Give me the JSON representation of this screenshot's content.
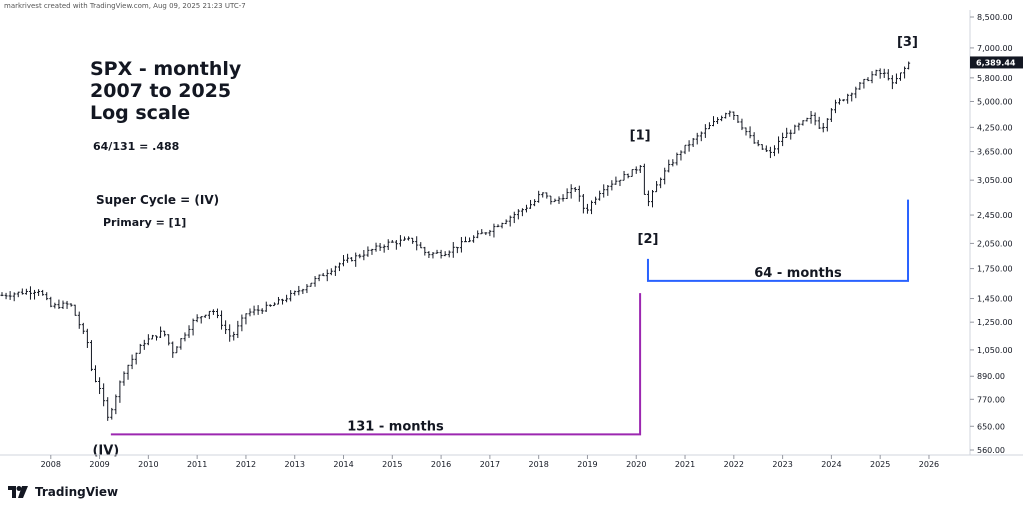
{
  "header": {
    "credit": "markrivest created with TradingView.com, Aug 09, 2025 21:23 UTC-7"
  },
  "brand": {
    "name": "TradingView"
  },
  "annotations": {
    "title_line1": "SPX - monthly",
    "title_line2": "2007 to 2025",
    "title_line3": "Log scale",
    "ratio": "64/131 = .488",
    "super_cycle": "Super Cycle = (IV)",
    "primary": "Primary = [1]",
    "label_iv": "(IV)",
    "label_1": "[1]",
    "label_2": "[2]",
    "label_3": "[3]",
    "span_131": "131 - months",
    "span_64": "64 - months"
  },
  "colors": {
    "purple": "#9c27b0",
    "blue": "#2962ff",
    "bars": "#131722",
    "price_tag": "#131722"
  },
  "chart_data": {
    "type": "ohlc",
    "title": "SPX - monthly",
    "scale": "log",
    "ylim": [
      560,
      8500
    ],
    "y_ticks": [
      8500,
      7000,
      5800,
      5000,
      4250,
      3650,
      3050,
      2450,
      2050,
      1750,
      1450,
      1250,
      1050,
      890,
      770,
      650,
      560
    ],
    "y_tick_labels": [
      "8,500.00",
      "7,000.00",
      "5,800.00",
      "5,000.00",
      "4,250.00",
      "3,650.00",
      "3,050.00",
      "2,450.00",
      "2,050.00",
      "1,750.00",
      "1,450.00",
      "1,250.00",
      "1,050.00",
      "890.00",
      "770.00",
      "650.00",
      "560.00"
    ],
    "x_ticks": [
      "2008",
      "2009",
      "2010",
      "2011",
      "2012",
      "2013",
      "2014",
      "2015",
      "2016",
      "2017",
      "2018",
      "2019",
      "2020",
      "2021",
      "2022",
      "2023",
      "2024",
      "2025",
      "2026"
    ],
    "last_price": "6,389.44",
    "anchors": [
      {
        "date": 2007.0,
        "close": 1480
      },
      {
        "date": 2007.75,
        "close": 1530
      },
      {
        "date": 2008.0,
        "close": 1380
      },
      {
        "date": 2008.4,
        "close": 1400
      },
      {
        "date": 2008.75,
        "close": 1100
      },
      {
        "date": 2008.85,
        "close": 900
      },
      {
        "date": 2009.0,
        "close": 830
      },
      {
        "date": 2009.17,
        "close": 680
      },
      {
        "date": 2009.5,
        "close": 920
      },
      {
        "date": 2009.9,
        "close": 1100
      },
      {
        "date": 2010.3,
        "close": 1180
      },
      {
        "date": 2010.5,
        "close": 1040
      },
      {
        "date": 2010.9,
        "close": 1250
      },
      {
        "date": 2011.3,
        "close": 1360
      },
      {
        "date": 2011.7,
        "close": 1130
      },
      {
        "date": 2012.0,
        "close": 1320
      },
      {
        "date": 2012.5,
        "close": 1380
      },
      {
        "date": 2013.0,
        "close": 1500
      },
      {
        "date": 2013.9,
        "close": 1800
      },
      {
        "date": 2014.9,
        "close": 2050
      },
      {
        "date": 2015.4,
        "close": 2100
      },
      {
        "date": 2015.7,
        "close": 1920
      },
      {
        "date": 2016.05,
        "close": 1930
      },
      {
        "date": 2016.9,
        "close": 2200
      },
      {
        "date": 2017.9,
        "close": 2650
      },
      {
        "date": 2018.05,
        "close": 2820
      },
      {
        "date": 2018.3,
        "close": 2650
      },
      {
        "date": 2018.75,
        "close": 2900
      },
      {
        "date": 2018.95,
        "close": 2500
      },
      {
        "date": 2019.3,
        "close": 2900
      },
      {
        "date": 2019.95,
        "close": 3230
      },
      {
        "date": 2020.1,
        "close": 3380
      },
      {
        "date": 2020.2,
        "close": 2580
      },
      {
        "date": 2020.5,
        "close": 3100
      },
      {
        "date": 2020.9,
        "close": 3650
      },
      {
        "date": 2021.9,
        "close": 4750
      },
      {
        "date": 2022.0,
        "close": 4600
      },
      {
        "date": 2022.45,
        "close": 3800
      },
      {
        "date": 2022.75,
        "close": 3600
      },
      {
        "date": 2023.0,
        "close": 4000
      },
      {
        "date": 2023.6,
        "close": 4550
      },
      {
        "date": 2023.8,
        "close": 4200
      },
      {
        "date": 2024.0,
        "close": 4800
      },
      {
        "date": 2024.9,
        "close": 6000
      },
      {
        "date": 2025.15,
        "close": 5900
      },
      {
        "date": 2025.25,
        "close": 5550
      },
      {
        "date": 2025.4,
        "close": 5900
      },
      {
        "date": 2025.6,
        "close": 6389
      }
    ],
    "markers": [
      {
        "label": "(IV)",
        "date": 2009.17,
        "value": 666
      },
      {
        "label": "[1]",
        "date": 2020.12,
        "value": 3390
      },
      {
        "label": "[2]",
        "date": 2020.22,
        "value": 2190
      },
      {
        "label": "[3]",
        "date": 2025.6,
        "value": 6400
      }
    ],
    "spans": [
      {
        "label": "131 - months",
        "from": 2009.17,
        "to": 2020.12
      },
      {
        "label": "64 - months",
        "from": 2020.22,
        "to": 2025.55
      }
    ]
  }
}
